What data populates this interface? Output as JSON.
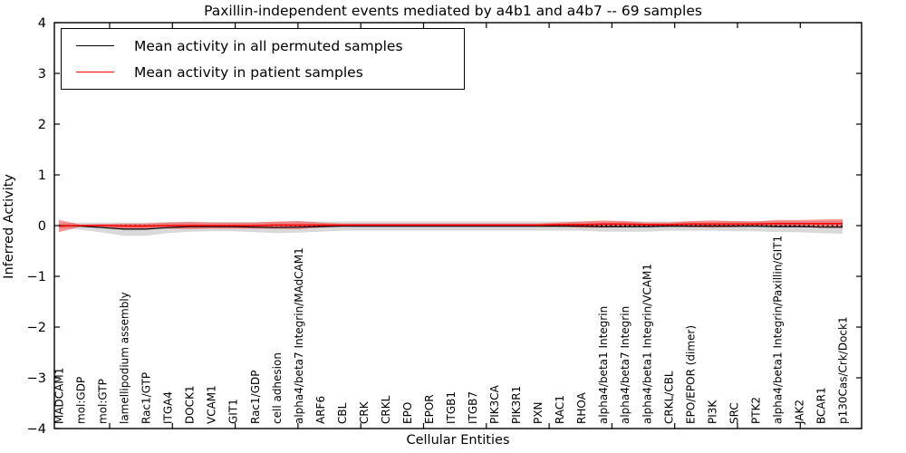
{
  "chart_data": {
    "type": "line",
    "title": "Paxillin-independent events mediated by a4b1 and a4b7 -- 69 samples",
    "xlabel": "Cellular Entities",
    "ylabel": "Inferred Activity",
    "ylim": [
      -4,
      4
    ],
    "yticks": [
      -4,
      -3,
      -2,
      -1,
      0,
      1,
      2,
      3,
      4
    ],
    "grid": false,
    "zero_line": {
      "y": 0,
      "style": "dashed",
      "color": "#000000"
    },
    "legend": {
      "position": "upper left",
      "entries": [
        {
          "label": "Mean activity in all permuted samples",
          "color": "#000000"
        },
        {
          "label": "Mean activity in patient samples",
          "color": "#ff0000"
        }
      ]
    },
    "categories": [
      "MADCAM1",
      "mol:GDP",
      "mol:GTP",
      "lamellipodium assembly",
      "Rac1/GTP",
      "ITGA4",
      "DOCK1",
      "VCAM1",
      "GIT1",
      "Rac1/GDP",
      "cell adhesion",
      "alpha4/beta7 Integrin/MAdCAM1",
      "ARF6",
      "CBL",
      "CRK",
      "CRKL",
      "EPO",
      "EPOR",
      "ITGB1",
      "ITGB7",
      "PIK3CA",
      "PIK3R1",
      "PXN",
      "RAC1",
      "RHOA",
      "alpha4/beta1 Integrin",
      "alpha4/beta7 Integrin",
      "alpha4/beta1 Integrin/VCAM1",
      "CRKL/CBL",
      "EPO/EPOR (dimer)",
      "PI3K",
      "SRC",
      "PTK2",
      "alpha4/beta1 Integrin/Paxillin/GIT1",
      "JAK2",
      "BCAR1",
      "p130Cas/Crk/Dock1"
    ],
    "series": [
      {
        "name": "Mean activity in all permuted samples",
        "color": "#000000",
        "values": [
          0.0,
          -0.01,
          -0.04,
          -0.07,
          -0.07,
          -0.04,
          -0.02,
          -0.02,
          -0.02,
          -0.03,
          -0.04,
          -0.03,
          -0.02,
          -0.01,
          -0.01,
          -0.01,
          -0.01,
          -0.01,
          -0.01,
          -0.01,
          -0.01,
          -0.01,
          -0.01,
          -0.01,
          -0.01,
          -0.02,
          -0.02,
          -0.02,
          -0.01,
          -0.01,
          -0.01,
          -0.01,
          -0.01,
          -0.02,
          -0.02,
          -0.03,
          -0.03
        ],
        "band": {
          "name": "permuted samples std band",
          "color": "rgba(0,0,0,0.15)",
          "half_width": [
            0.05,
            0.07,
            0.1,
            0.13,
            0.13,
            0.11,
            0.1,
            0.09,
            0.09,
            0.1,
            0.11,
            0.11,
            0.1,
            0.09,
            0.09,
            0.09,
            0.09,
            0.09,
            0.09,
            0.09,
            0.09,
            0.09,
            0.09,
            0.09,
            0.09,
            0.1,
            0.1,
            0.1,
            0.09,
            0.09,
            0.09,
            0.1,
            0.1,
            0.11,
            0.11,
            0.12,
            0.13
          ]
        }
      },
      {
        "name": "Mean activity in patient samples",
        "color": "#ff0000",
        "values": [
          -0.01,
          0.0,
          0.0,
          -0.01,
          -0.01,
          0.0,
          0.0,
          0.0,
          0.0,
          0.0,
          0.01,
          0.01,
          0.01,
          0.01,
          0.01,
          0.01,
          0.01,
          0.01,
          0.01,
          0.01,
          0.01,
          0.01,
          0.01,
          0.02,
          0.02,
          0.03,
          0.03,
          0.02,
          0.02,
          0.03,
          0.03,
          0.03,
          0.03,
          0.04,
          0.04,
          0.04,
          0.04
        ],
        "band": {
          "name": "patient samples std band",
          "color": "rgba(255,0,0,0.40)",
          "half_width": [
            0.12,
            0.02,
            0.03,
            0.05,
            0.05,
            0.06,
            0.07,
            0.06,
            0.06,
            0.06,
            0.07,
            0.08,
            0.05,
            0.03,
            0.03,
            0.03,
            0.03,
            0.03,
            0.03,
            0.03,
            0.03,
            0.03,
            0.03,
            0.04,
            0.06,
            0.07,
            0.06,
            0.04,
            0.04,
            0.06,
            0.07,
            0.06,
            0.05,
            0.07,
            0.07,
            0.08,
            0.09
          ]
        }
      }
    ]
  }
}
